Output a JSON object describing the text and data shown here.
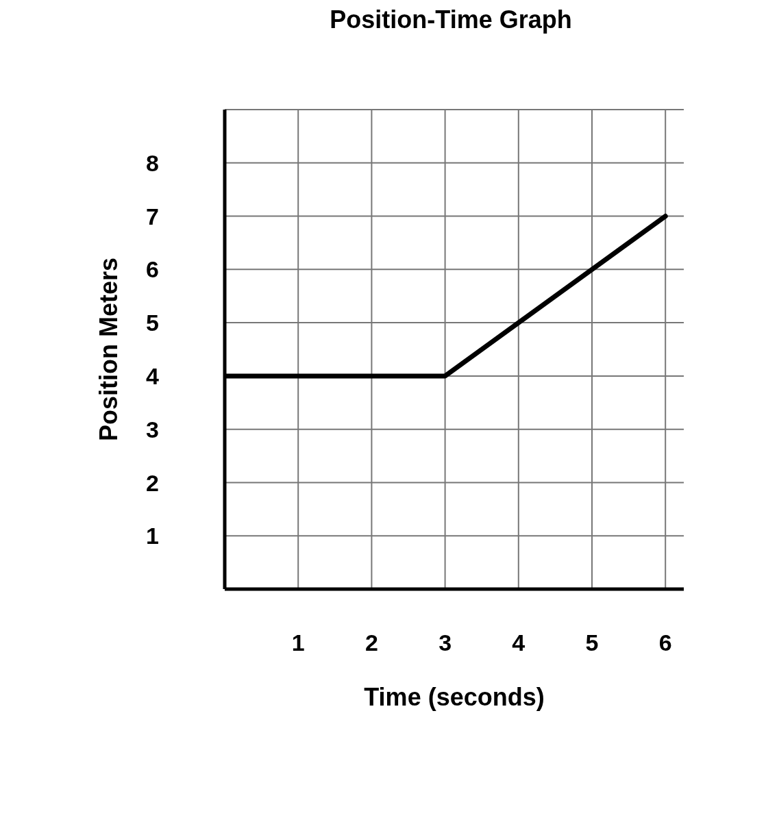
{
  "chart_data": {
    "type": "line",
    "title": "Position-Time Graph",
    "xlabel": "Time (seconds)",
    "ylabel": "Position Meters",
    "x": [
      0,
      3,
      6
    ],
    "series": [
      {
        "color": "#000000",
        "values": [
          4,
          4,
          7
        ]
      }
    ],
    "xlim": [
      0,
      6.25
    ],
    "xticks": [
      1,
      2,
      3,
      4,
      5,
      6
    ],
    "ylim": [
      0,
      9
    ],
    "yticks": [
      1,
      2,
      3,
      4,
      5,
      6,
      7,
      8,
      {
        "value": 9,
        "label": null
      }
    ],
    "grid": true,
    "marker": "none",
    "line_style": "solid"
  }
}
